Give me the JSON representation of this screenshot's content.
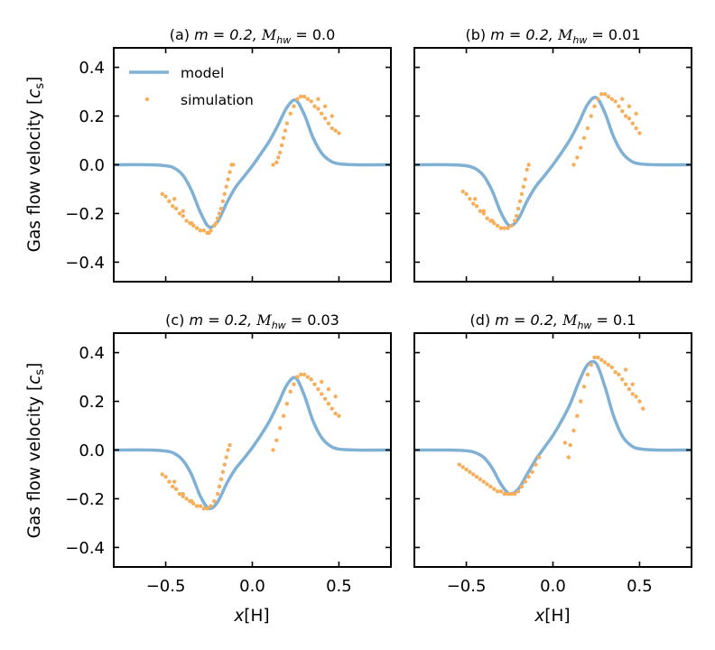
{
  "figure": {
    "ylabel_main": "Gas flow velocity [",
    "ylabel_sym": "c",
    "ylabel_sub": "s",
    "ylabel_close": "]",
    "xlabel_main": "x",
    "xlabel_unit": "[H]"
  },
  "legend": {
    "model": "model",
    "simulation": "simulation"
  },
  "colors": {
    "model": "#7fb1d5",
    "simulation": "#f7ae5b"
  },
  "chart_data": [
    {
      "type": "line+scatter",
      "title_prefix": "(a) ",
      "title_m": "m = 0.2,  ",
      "title_M": "M",
      "title_sub": "hw",
      "title_val": " = 0.0",
      "series": [
        {
          "name": "model",
          "x": [
            -0.8,
            -0.6,
            -0.5,
            -0.45,
            -0.4,
            -0.35,
            -0.3,
            -0.25,
            -0.2,
            -0.15,
            -0.1,
            -0.05,
            0.0,
            0.05,
            0.1,
            0.15,
            0.2,
            0.25,
            0.3,
            0.35,
            0.4,
            0.45,
            0.5,
            0.6,
            0.8
          ],
          "y": [
            0.0,
            0.0,
            -0.004,
            -0.014,
            -0.044,
            -0.107,
            -0.195,
            -0.255,
            -0.233,
            -0.16,
            -0.096,
            -0.05,
            -0.005,
            0.046,
            0.099,
            0.165,
            0.236,
            0.265,
            0.206,
            0.112,
            0.048,
            0.016,
            0.004,
            0.0,
            0.0
          ]
        },
        {
          "name": "simulation",
          "x": [
            -0.52,
            -0.5,
            -0.48,
            -0.46,
            -0.44,
            -0.42,
            -0.4,
            -0.38,
            -0.36,
            -0.34,
            -0.32,
            -0.3,
            -0.28,
            -0.26,
            -0.24,
            -0.22,
            -0.21,
            -0.2,
            -0.19,
            -0.18,
            -0.17,
            -0.16,
            -0.15,
            -0.14,
            -0.13,
            -0.12,
            -0.11,
            -0.45,
            -0.4,
            -0.35,
            -0.3,
            -0.25,
            0.12,
            0.14,
            0.15,
            0.16,
            0.17,
            0.18,
            0.19,
            0.2,
            0.22,
            0.24,
            0.26,
            0.28,
            0.3,
            0.32,
            0.34,
            0.36,
            0.38,
            0.4,
            0.42,
            0.44,
            0.46,
            0.48,
            0.5,
            0.38,
            0.42,
            0.46
          ],
          "y": [
            -0.12,
            -0.13,
            -0.15,
            -0.17,
            -0.18,
            -0.2,
            -0.21,
            -0.23,
            -0.24,
            -0.25,
            -0.26,
            -0.27,
            -0.27,
            -0.28,
            -0.27,
            -0.25,
            -0.24,
            -0.22,
            -0.2,
            -0.18,
            -0.15,
            -0.12,
            -0.09,
            -0.06,
            -0.03,
            0.0,
            0.0,
            -0.14,
            -0.19,
            -0.24,
            -0.27,
            -0.28,
            0.0,
            0.01,
            0.03,
            0.05,
            0.08,
            0.11,
            0.14,
            0.17,
            0.21,
            0.24,
            0.27,
            0.28,
            0.28,
            0.27,
            0.26,
            0.24,
            0.23,
            0.21,
            0.19,
            0.17,
            0.15,
            0.14,
            0.13,
            0.27,
            0.24,
            0.2
          ]
        }
      ]
    },
    {
      "type": "line+scatter",
      "title_prefix": "(b) ",
      "title_m": "m = 0.2,  ",
      "title_M": "M",
      "title_sub": "hw",
      "title_val": " = 0.01",
      "series": [
        {
          "name": "model",
          "x": [
            -0.8,
            -0.6,
            -0.5,
            -0.45,
            -0.4,
            -0.35,
            -0.3,
            -0.25,
            -0.2,
            -0.15,
            -0.1,
            -0.05,
            0.0,
            0.05,
            0.1,
            0.15,
            0.2,
            0.25,
            0.3,
            0.35,
            0.4,
            0.45,
            0.5,
            0.6,
            0.8
          ],
          "y": [
            0.0,
            0.0,
            -0.004,
            -0.015,
            -0.045,
            -0.108,
            -0.197,
            -0.25,
            -0.222,
            -0.15,
            -0.09,
            -0.046,
            0.0,
            0.05,
            0.105,
            0.173,
            0.248,
            0.276,
            0.213,
            0.115,
            0.049,
            0.016,
            0.004,
            0.0,
            0.0
          ]
        },
        {
          "name": "simulation",
          "x": [
            -0.52,
            -0.5,
            -0.48,
            -0.46,
            -0.44,
            -0.42,
            -0.4,
            -0.38,
            -0.36,
            -0.34,
            -0.32,
            -0.3,
            -0.28,
            -0.26,
            -0.24,
            -0.22,
            -0.21,
            -0.2,
            -0.19,
            -0.18,
            -0.17,
            -0.16,
            -0.15,
            -0.14,
            -0.45,
            -0.4,
            -0.35,
            -0.3,
            0.12,
            0.14,
            0.16,
            0.18,
            0.2,
            0.22,
            0.24,
            0.26,
            0.28,
            0.3,
            0.32,
            0.34,
            0.36,
            0.38,
            0.4,
            0.42,
            0.44,
            0.46,
            0.48,
            0.5,
            0.4,
            0.44,
            0.48
          ],
          "y": [
            -0.11,
            -0.12,
            -0.14,
            -0.16,
            -0.17,
            -0.19,
            -0.2,
            -0.22,
            -0.23,
            -0.24,
            -0.25,
            -0.26,
            -0.26,
            -0.26,
            -0.25,
            -0.23,
            -0.21,
            -0.18,
            -0.15,
            -0.12,
            -0.09,
            -0.06,
            -0.02,
            0.0,
            -0.14,
            -0.19,
            -0.23,
            -0.26,
            0.0,
            0.03,
            0.07,
            0.11,
            0.15,
            0.2,
            0.24,
            0.27,
            0.29,
            0.29,
            0.28,
            0.27,
            0.26,
            0.24,
            0.22,
            0.2,
            0.19,
            0.17,
            0.15,
            0.13,
            0.27,
            0.24,
            0.21
          ]
        }
      ]
    },
    {
      "type": "line+scatter",
      "title_prefix": "(c) ",
      "title_m": "m = 0.2,  ",
      "title_M": "M",
      "title_sub": "hw",
      "title_val": " = 0.03",
      "series": [
        {
          "name": "model",
          "x": [
            -0.8,
            -0.6,
            -0.5,
            -0.45,
            -0.4,
            -0.35,
            -0.3,
            -0.25,
            -0.2,
            -0.15,
            -0.1,
            -0.05,
            0.0,
            0.05,
            0.1,
            0.15,
            0.2,
            0.25,
            0.3,
            0.35,
            0.4,
            0.45,
            0.5,
            0.6,
            0.8
          ],
          "y": [
            0.0,
            0.0,
            -0.004,
            -0.014,
            -0.043,
            -0.102,
            -0.19,
            -0.24,
            -0.213,
            -0.14,
            -0.08,
            -0.036,
            0.01,
            0.062,
            0.12,
            0.192,
            0.268,
            0.296,
            0.225,
            0.12,
            0.051,
            0.017,
            0.004,
            0.0,
            0.0
          ]
        },
        {
          "name": "simulation",
          "x": [
            -0.52,
            -0.5,
            -0.48,
            -0.46,
            -0.44,
            -0.42,
            -0.4,
            -0.38,
            -0.36,
            -0.34,
            -0.32,
            -0.3,
            -0.28,
            -0.26,
            -0.24,
            -0.22,
            -0.2,
            -0.19,
            -0.18,
            -0.17,
            -0.16,
            -0.15,
            -0.14,
            -0.13,
            -0.45,
            -0.4,
            -0.35,
            0.12,
            0.14,
            0.16,
            0.18,
            0.2,
            0.22,
            0.24,
            0.26,
            0.28,
            0.3,
            0.32,
            0.34,
            0.36,
            0.38,
            0.4,
            0.42,
            0.44,
            0.46,
            0.48,
            0.5,
            0.4,
            0.44,
            0.48
          ],
          "y": [
            -0.1,
            -0.11,
            -0.13,
            -0.15,
            -0.16,
            -0.18,
            -0.19,
            -0.2,
            -0.21,
            -0.22,
            -0.23,
            -0.23,
            -0.24,
            -0.24,
            -0.23,
            -0.21,
            -0.18,
            -0.15,
            -0.12,
            -0.09,
            -0.06,
            -0.03,
            0.0,
            0.02,
            -0.13,
            -0.18,
            -0.21,
            0.0,
            0.04,
            0.09,
            0.14,
            0.19,
            0.24,
            0.27,
            0.3,
            0.31,
            0.31,
            0.3,
            0.29,
            0.27,
            0.25,
            0.23,
            0.21,
            0.19,
            0.17,
            0.15,
            0.14,
            0.28,
            0.25,
            0.22
          ]
        }
      ]
    },
    {
      "type": "line+scatter",
      "title_prefix": "(d) ",
      "title_m": "m = 0.2,  ",
      "title_M": "M",
      "title_sub": "hw",
      "title_val": " = 0.1",
      "series": [
        {
          "name": "model",
          "x": [
            -0.8,
            -0.6,
            -0.5,
            -0.45,
            -0.4,
            -0.35,
            -0.3,
            -0.25,
            -0.2,
            -0.15,
            -0.1,
            -0.05,
            0.0,
            0.05,
            0.1,
            0.15,
            0.2,
            0.25,
            0.3,
            0.35,
            0.4,
            0.45,
            0.5,
            0.6,
            0.8
          ],
          "y": [
            0.0,
            0.0,
            -0.003,
            -0.01,
            -0.03,
            -0.075,
            -0.14,
            -0.18,
            -0.16,
            -0.1,
            -0.04,
            0.01,
            0.06,
            0.12,
            0.19,
            0.28,
            0.35,
            0.355,
            0.26,
            0.14,
            0.058,
            0.019,
            0.005,
            0.0,
            0.0
          ]
        },
        {
          "name": "simulation",
          "x": [
            -0.54,
            -0.52,
            -0.5,
            -0.48,
            -0.46,
            -0.44,
            -0.42,
            -0.4,
            -0.38,
            -0.36,
            -0.34,
            -0.32,
            -0.3,
            -0.28,
            -0.26,
            -0.24,
            -0.22,
            -0.2,
            -0.18,
            -0.16,
            -0.14,
            -0.12,
            -0.1,
            -0.08,
            0.1,
            0.12,
            0.14,
            0.16,
            0.18,
            0.2,
            0.22,
            0.24,
            0.26,
            0.28,
            0.3,
            0.32,
            0.34,
            0.36,
            0.38,
            0.4,
            0.42,
            0.44,
            0.46,
            0.48,
            0.5,
            0.52,
            0.07,
            0.09,
            0.42,
            0.46
          ],
          "y": [
            -0.06,
            -0.07,
            -0.08,
            -0.09,
            -0.1,
            -0.11,
            -0.12,
            -0.13,
            -0.14,
            -0.15,
            -0.16,
            -0.17,
            -0.17,
            -0.18,
            -0.18,
            -0.18,
            -0.18,
            -0.17,
            -0.15,
            -0.13,
            -0.11,
            -0.09,
            -0.06,
            -0.03,
            0.02,
            0.08,
            0.14,
            0.2,
            0.26,
            0.31,
            0.35,
            0.38,
            0.38,
            0.37,
            0.36,
            0.35,
            0.34,
            0.32,
            0.31,
            0.29,
            0.27,
            0.25,
            0.23,
            0.22,
            0.2,
            0.17,
            0.03,
            -0.03,
            0.33,
            0.27
          ]
        }
      ]
    }
  ],
  "axes": {
    "xlim": [
      -0.8,
      0.8
    ],
    "ylim": [
      -0.48,
      0.48
    ],
    "xticks": [
      -0.5,
      0.0,
      0.5
    ],
    "xtick_labels": [
      "−0.5",
      "0.0",
      "0.5"
    ],
    "yticks": [
      0.4,
      0.2,
      0.0,
      -0.2,
      -0.4
    ],
    "ytick_labels": [
      "0.4",
      "0.2",
      "0.0",
      "−0.2",
      "−0.4"
    ]
  }
}
